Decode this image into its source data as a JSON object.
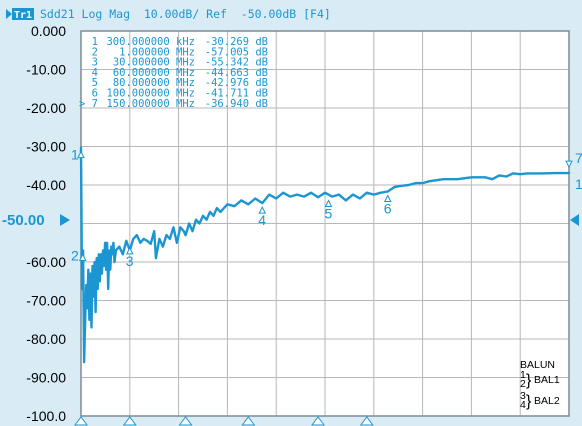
{
  "header": {
    "trace_badge": "Tr1",
    "title": "Sdd21 Log Mag  10.00dB/ Ref  -50.00dB [F4]"
  },
  "y_axis": {
    "labels": [
      "0.000",
      "-10.00",
      "-20.00",
      "-30.00",
      "-40.00",
      "-50.00",
      "-60.00",
      "-70.00",
      "-80.00",
      "-90.00",
      "-100.0"
    ],
    "ref_label": "-50.00",
    "min": -100,
    "max": 0,
    "divisions": 10
  },
  "markers": [
    {
      "num": "1",
      "freq": "300.000000 kHz",
      "value": "-30.269 dB",
      "active": false
    },
    {
      "num": "2",
      "freq": "1.000000 MHz",
      "value": "-57.005 dB",
      "active": false
    },
    {
      "num": "3",
      "freq": "30.000000 MHz",
      "value": "-55.342 dB",
      "active": false
    },
    {
      "num": "4",
      "freq": "60.000000 MHz",
      "value": "-44.663 dB",
      "active": false
    },
    {
      "num": "5",
      "freq": "80.000000 MHz",
      "value": "-42.976 dB",
      "active": false
    },
    {
      "num": "6",
      "freq": "100.000000 MHz",
      "value": "-41.711 dB",
      "active": false
    },
    {
      "num": "7",
      "freq": "150.000000 MHz",
      "value": "-36.940 dB",
      "active": true
    }
  ],
  "active_marker_symbol": ">",
  "balun": {
    "title": "BALUN",
    "port_a": "1",
    "port_b": "2",
    "port_c": "3",
    "port_d": "4",
    "bal1": "BAL1",
    "bal2": "BAL2"
  },
  "colors": {
    "trace": "#1c96d2",
    "background": "#d9ecf5",
    "plot": "#ffffff"
  },
  "chart_data": {
    "type": "line",
    "title": "Sdd21 Log Mag  10.00dB/ Ref  -50.00dB [F4]",
    "xlabel": "",
    "ylabel": "",
    "ylim": [
      -100,
      0
    ],
    "x_divisions": 10,
    "grid": true,
    "series": [
      {
        "values": [
          [
            0.0,
            -30.3
          ],
          [
            0.03,
            -67.0
          ],
          [
            0.06,
            -57.0
          ],
          [
            0.09,
            -86.0
          ],
          [
            0.12,
            -75.0
          ],
          [
            0.15,
            -66.0
          ],
          [
            0.18,
            -72.0
          ],
          [
            0.21,
            -62.0
          ],
          [
            0.24,
            -75.0
          ],
          [
            0.27,
            -63.0
          ],
          [
            0.3,
            -77.0
          ],
          [
            0.33,
            -61.0
          ],
          [
            0.36,
            -69.0
          ],
          [
            0.39,
            -60.0
          ],
          [
            0.42,
            -73.0
          ],
          [
            0.45,
            -59.0
          ],
          [
            0.48,
            -67.0
          ],
          [
            0.51,
            -58.0
          ],
          [
            0.54,
            -65.0
          ],
          [
            0.57,
            -58.0
          ],
          [
            0.6,
            -63.0
          ],
          [
            0.63,
            -57.0
          ],
          [
            0.66,
            -61.0
          ],
          [
            0.69,
            -55.0
          ],
          [
            0.72,
            -62.0
          ],
          [
            0.75,
            -55.0
          ],
          [
            0.78,
            -67.0
          ],
          [
            0.81,
            -57.0
          ],
          [
            0.84,
            -62.0
          ],
          [
            0.87,
            -56.0
          ],
          [
            0.9,
            -58.0
          ],
          [
            0.93,
            -55.0
          ],
          [
            0.96,
            -60.0
          ],
          [
            1.0,
            -57.0
          ],
          [
            1.1,
            -56.0
          ],
          [
            1.2,
            -58.0
          ],
          [
            1.3,
            -54.5
          ],
          [
            1.4,
            -57.0
          ],
          [
            1.5,
            -54.0
          ],
          [
            1.6,
            -53.0
          ],
          [
            1.7,
            -55.0
          ],
          [
            1.8,
            -54.0
          ],
          [
            1.9,
            -54.5
          ],
          [
            2.0,
            -55.3
          ],
          [
            2.1,
            -52.0
          ],
          [
            2.15,
            -59.0
          ],
          [
            2.25,
            -54.0
          ],
          [
            2.35,
            -56.0
          ],
          [
            2.45,
            -53.0
          ],
          [
            2.55,
            -54.0
          ],
          [
            2.65,
            -51.0
          ],
          [
            2.75,
            -55.0
          ],
          [
            2.85,
            -51.0
          ],
          [
            2.95,
            -52.0
          ],
          [
            3.0,
            -53.0
          ],
          [
            3.1,
            -50.0
          ],
          [
            3.2,
            -52.0
          ],
          [
            3.3,
            -49.0
          ],
          [
            3.4,
            -50.0
          ],
          [
            3.5,
            -48.0
          ],
          [
            3.6,
            -49.0
          ],
          [
            3.7,
            -47.0
          ],
          [
            3.8,
            -48.0
          ],
          [
            3.9,
            -46.0
          ],
          [
            4.0,
            -47.0
          ],
          [
            4.2,
            -45.0
          ],
          [
            4.4,
            -45.5
          ],
          [
            4.6,
            -44.0
          ],
          [
            4.8,
            -45.0
          ],
          [
            5.0,
            -43.5
          ],
          [
            5.2,
            -44.7
          ],
          [
            5.4,
            -42.5
          ],
          [
            5.6,
            -43.5
          ],
          [
            5.8,
            -42.0
          ],
          [
            6.0,
            -43.0
          ],
          [
            6.2,
            -42.5
          ],
          [
            6.4,
            -43.0
          ],
          [
            6.6,
            -42.0
          ],
          [
            6.8,
            -43.2
          ],
          [
            7.0,
            -42.0
          ],
          [
            7.2,
            -43.0
          ],
          [
            7.4,
            -42.5
          ],
          [
            7.6,
            -44.0
          ],
          [
            7.8,
            -42.5
          ],
          [
            8.0,
            -43.5
          ],
          [
            8.2,
            -42.0
          ],
          [
            8.4,
            -42.5
          ],
          [
            8.6,
            -42.0
          ],
          [
            8.8,
            -41.7
          ],
          [
            9.0,
            -40.5
          ],
          [
            9.2,
            -40.2
          ],
          [
            9.4,
            -40.0
          ],
          [
            9.6,
            -39.5
          ],
          [
            9.8,
            -39.5
          ],
          [
            10.0,
            -39.0
          ],
          [
            10.4,
            -38.5
          ],
          [
            10.8,
            -38.5
          ],
          [
            11.2,
            -38.0
          ],
          [
            11.6,
            -38.0
          ],
          [
            11.8,
            -38.5
          ],
          [
            12.0,
            -37.5
          ],
          [
            12.2,
            -37.8
          ],
          [
            12.4,
            -37.0
          ],
          [
            12.6,
            -37.2
          ],
          [
            12.8,
            -37.0
          ],
          [
            13.2,
            -37.0
          ],
          [
            13.6,
            -36.9
          ],
          [
            14.0,
            -36.9
          ]
        ]
      }
    ],
    "marker_positions": [
      {
        "num": "1",
        "x": 0.0,
        "y": -30.3
      },
      {
        "num": "2",
        "x": 0.05,
        "y": -57.0
      },
      {
        "num": "3",
        "x": 1.4,
        "y": -55.3
      },
      {
        "num": "4",
        "x": 5.2,
        "y": -44.7
      },
      {
        "num": "5",
        "x": 7.1,
        "y": -43.0
      },
      {
        "num": "6",
        "x": 8.8,
        "y": -41.7
      },
      {
        "num": "7",
        "x": 14.0,
        "y": -36.9
      }
    ],
    "x_max": 14.0
  }
}
